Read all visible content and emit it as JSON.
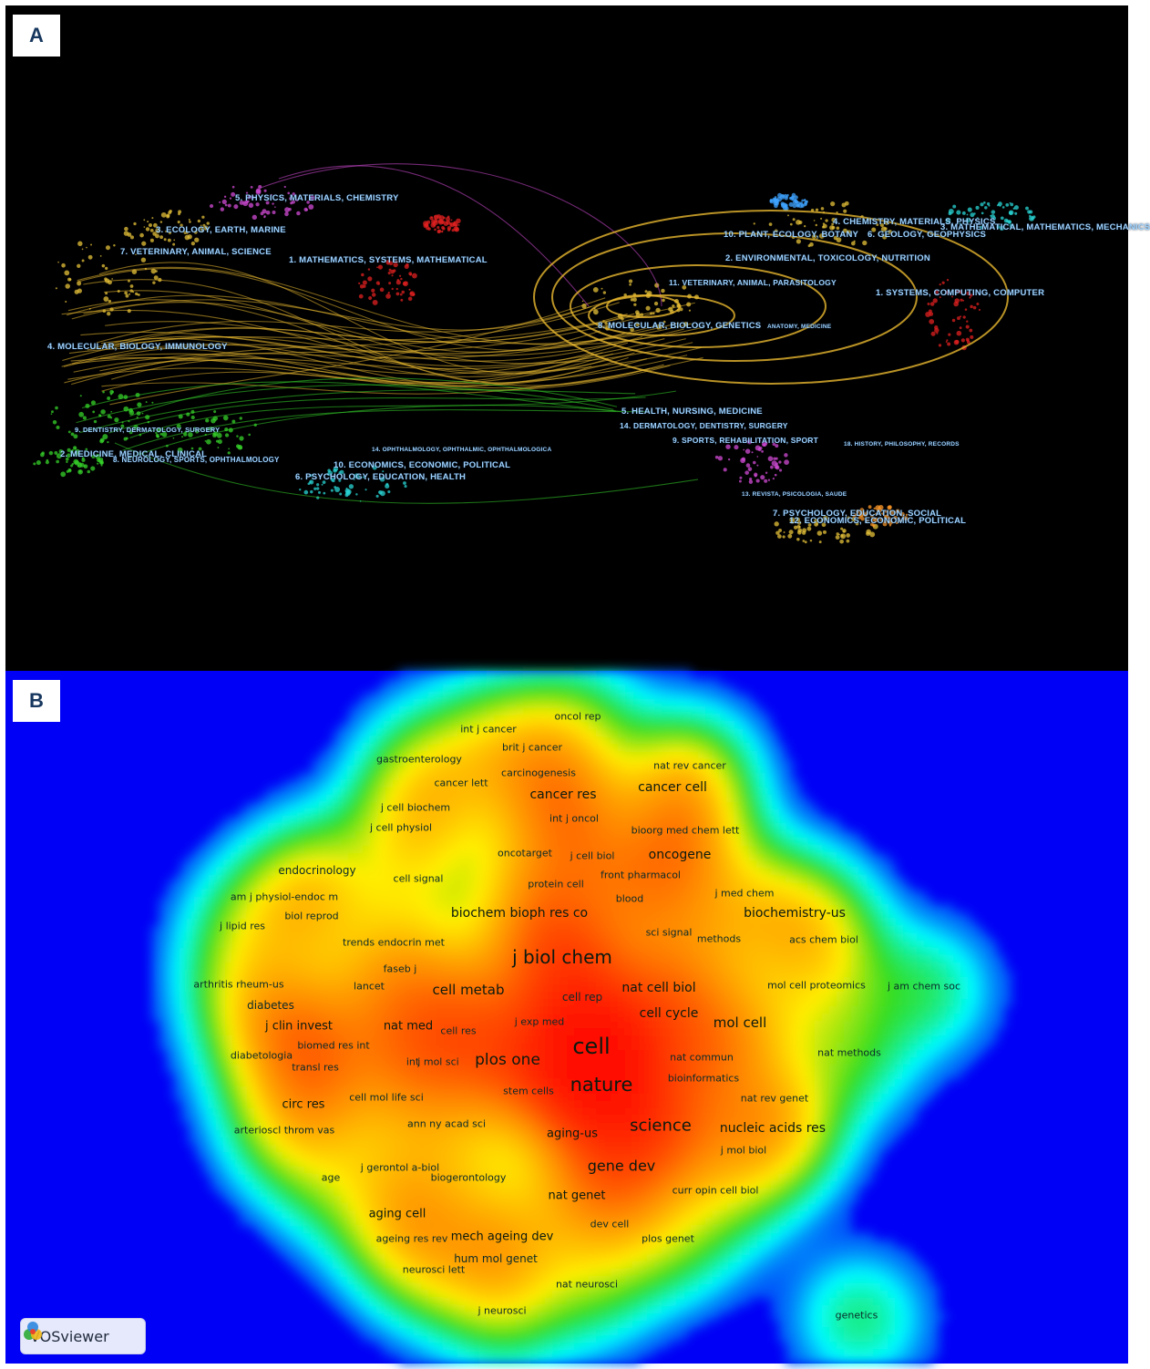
{
  "panel_a": {
    "letter": "A",
    "left_clusters": [
      "5. PHYSICS, MATERIALS, CHEMISTRY",
      "3. ECOLOGY, EARTH, MARINE",
      "7. VETERINARY, ANIMAL, SCIENCE",
      "1. MATHEMATICS, SYSTEMS, MATHEMATICAL",
      "4. MOLECULAR, BIOLOGY, IMMUNOLOGY",
      "9. DENTISTRY, DERMATOLOGY, SURGERY",
      "2. MEDICINE, MEDICAL, CLINICAL",
      "8. NEUROLOGY, SPORTS, OPHTHALMOLOGY",
      "14. OPHTHALMOLOGY, OPHTHALMIC, OPHTHALMOLOGICA",
      "10. ECONOMICS, ECONOMIC, POLITICAL",
      "6. PSYCHOLOGY, EDUCATION, HEALTH"
    ],
    "right_clusters": [
      "4. CHEMISTRY, MATERIALS, PHYSICS",
      "3. MATHEMATICAL, MATHEMATICS, MECHANICS",
      "10. PLANT, ECOLOGY, BOTANY",
      "6. GEOLOGY, GEOPHYSICS",
      "2. ENVIRONMENTAL, TOXICOLOGY, NUTRITION",
      "1. SYSTEMS, COMPUTING, COMPUTER",
      "11. VETERINARY, ANIMAL, PARASITOLOGY",
      "8. MOLECULAR, BIOLOGY, GENETICS",
      "ANATOMY, MEDICINE",
      "5. HEALTH, NURSING, MEDICINE",
      "14. DERMATOLOGY, DENTISTRY, SURGERY",
      "9. SPORTS, REHABILITATION, SPORT",
      "18. HISTORY, PHILOSOPHY, RECORDS",
      "13. REVISTA, PSICOLOGIA, SAUDE",
      "7. PSYCHOLOGY, EDUCATION, SOCIAL",
      "12. ECONOMICS, ECONOMIC, POLITICAL"
    ],
    "colors": {
      "citation_links": "#e8b830",
      "magenta": "#d24bd6",
      "green": "#35d22a",
      "cyan": "#2ad6d6",
      "red": "#e02020",
      "label": "#9ed2ff"
    }
  },
  "panel_b": {
    "letter": "B",
    "logo_text": "VOSviewer",
    "background": "#0000f6",
    "density_colors": [
      "#0000f6",
      "#00ffff",
      "#33dd22",
      "#ffee00",
      "#ff8800",
      "#ff0000"
    ]
  },
  "chart_data": [
    {
      "type": "network",
      "name": "dual-map overlay",
      "left_cluster_count": 11,
      "right_cluster_count": 16
    },
    {
      "type": "heatmap",
      "name": "journal co-citation density",
      "labels": [
        "oncol rep",
        "int j cancer",
        "brit j cancer",
        "gastroenterology",
        "nat rev cancer",
        "carcinogenesis",
        "cancer lett",
        "cancer res",
        "cancer cell",
        "j cell biochem",
        "int j oncol",
        "j cell physiol",
        "bioorg med chem lett",
        "oncotarget",
        "j cell biol",
        "oncogene",
        "endocrinology",
        "cell signal",
        "protein cell",
        "front pharmacol",
        "am j physiol-endoc m",
        "j med chem",
        "blood",
        "biochem bioph res co",
        "biochemistry-us",
        "biol reprod",
        "j lipid res",
        "sci signal",
        "methods",
        "trends endocrin met",
        "acs chem biol",
        "j biol chem",
        "faseb j",
        "arthritis rheum-us",
        "lancet",
        "cell metab",
        "nat cell biol",
        "mol cell proteomics",
        "j am chem soc",
        "cell rep",
        "diabetes",
        "cell cycle",
        "j exp med",
        "mol cell",
        "j clin invest",
        "nat med",
        "cell res",
        "biomed res int",
        "cell",
        "diabetologia",
        "nat commun",
        "nat methods",
        "j mol sci",
        "int",
        "plos one",
        "transl res",
        "nature",
        "bioinformatics",
        "stem cells",
        "cell mol life sci",
        "nat rev genet",
        "circ res",
        "ann ny acad sci",
        "science",
        "nucleic acids res",
        "arterioscl throm vas",
        "aging-us",
        "j mol biol",
        "gene dev",
        "j gerontol a-biol",
        "age",
        "biogerontology",
        "nat genet",
        "curr opin cell biol",
        "aging cell",
        "dev cell",
        "ageing res rev",
        "mech ageing dev",
        "plos genet",
        "hum mol genet",
        "neurosci lett",
        "nat neurosci",
        "j neurosci",
        "genetics"
      ]
    }
  ]
}
